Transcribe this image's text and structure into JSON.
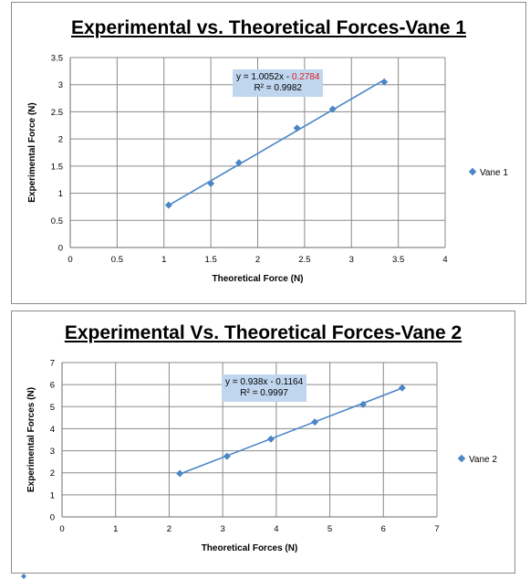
{
  "chart_data": [
    {
      "type": "scatter",
      "title": "Experimental vs. Theoretical Forces-Vane 1",
      "xlabel": "Theoretical Force (N)",
      "ylabel": "Experimental Force (N)",
      "xlim": [
        0,
        4
      ],
      "ylim": [
        0,
        3.5
      ],
      "x_ticks": [
        "0",
        "0.5",
        "1",
        "1.5",
        "2",
        "2.5",
        "3",
        "3.5",
        "4"
      ],
      "y_ticks": [
        "0",
        "0.5",
        "1",
        "1.5",
        "2",
        "2.5",
        "3",
        "3.5"
      ],
      "grid": true,
      "legend_position": "right",
      "series": [
        {
          "name": "Vane 1",
          "x": [
            1.05,
            1.5,
            1.8,
            2.42,
            2.8,
            3.35
          ],
          "y": [
            0.78,
            1.18,
            1.56,
            2.2,
            2.55,
            3.05
          ]
        }
      ],
      "trendline": {
        "slope": 1.0052,
        "intercept": -0.2784,
        "x_range": [
          1.05,
          3.35
        ]
      },
      "equation": {
        "main": "y = 1.0052x",
        "sign": " - ",
        "neg": "0.2784",
        "r2": "R² = 0.9982"
      },
      "colors": {
        "series": "#4a86c8",
        "label_box": "#bfd6ee",
        "negative_term": "#e02020"
      }
    },
    {
      "type": "scatter",
      "title": "Experimental Vs. Theoretical Forces-Vane 2",
      "xlabel": "Theoretical Forces (N)",
      "ylabel": "Experimental Forces (N)",
      "xlim": [
        0,
        7
      ],
      "ylim": [
        0,
        7
      ],
      "x_ticks": [
        "0",
        "1",
        "2",
        "3",
        "4",
        "5",
        "6",
        "7"
      ],
      "y_ticks": [
        "0",
        "1",
        "2",
        "3",
        "4",
        "5",
        "6",
        "7"
      ],
      "grid": true,
      "legend_position": "right",
      "series": [
        {
          "name": "Vane 2",
          "x": [
            2.2,
            3.08,
            3.9,
            4.72,
            5.62,
            6.35
          ],
          "y": [
            1.97,
            2.75,
            3.53,
            4.3,
            5.1,
            5.85
          ]
        }
      ],
      "trendline": {
        "slope": 0.938,
        "intercept": -0.1164,
        "x_range": [
          2.2,
          6.35
        ]
      },
      "equation": {
        "main": "y = 0.938x - 0.1164",
        "r2": "R² = 0.9997"
      },
      "colors": {
        "series": "#4a86c8",
        "label_box": "#bfd6ee"
      }
    }
  ]
}
